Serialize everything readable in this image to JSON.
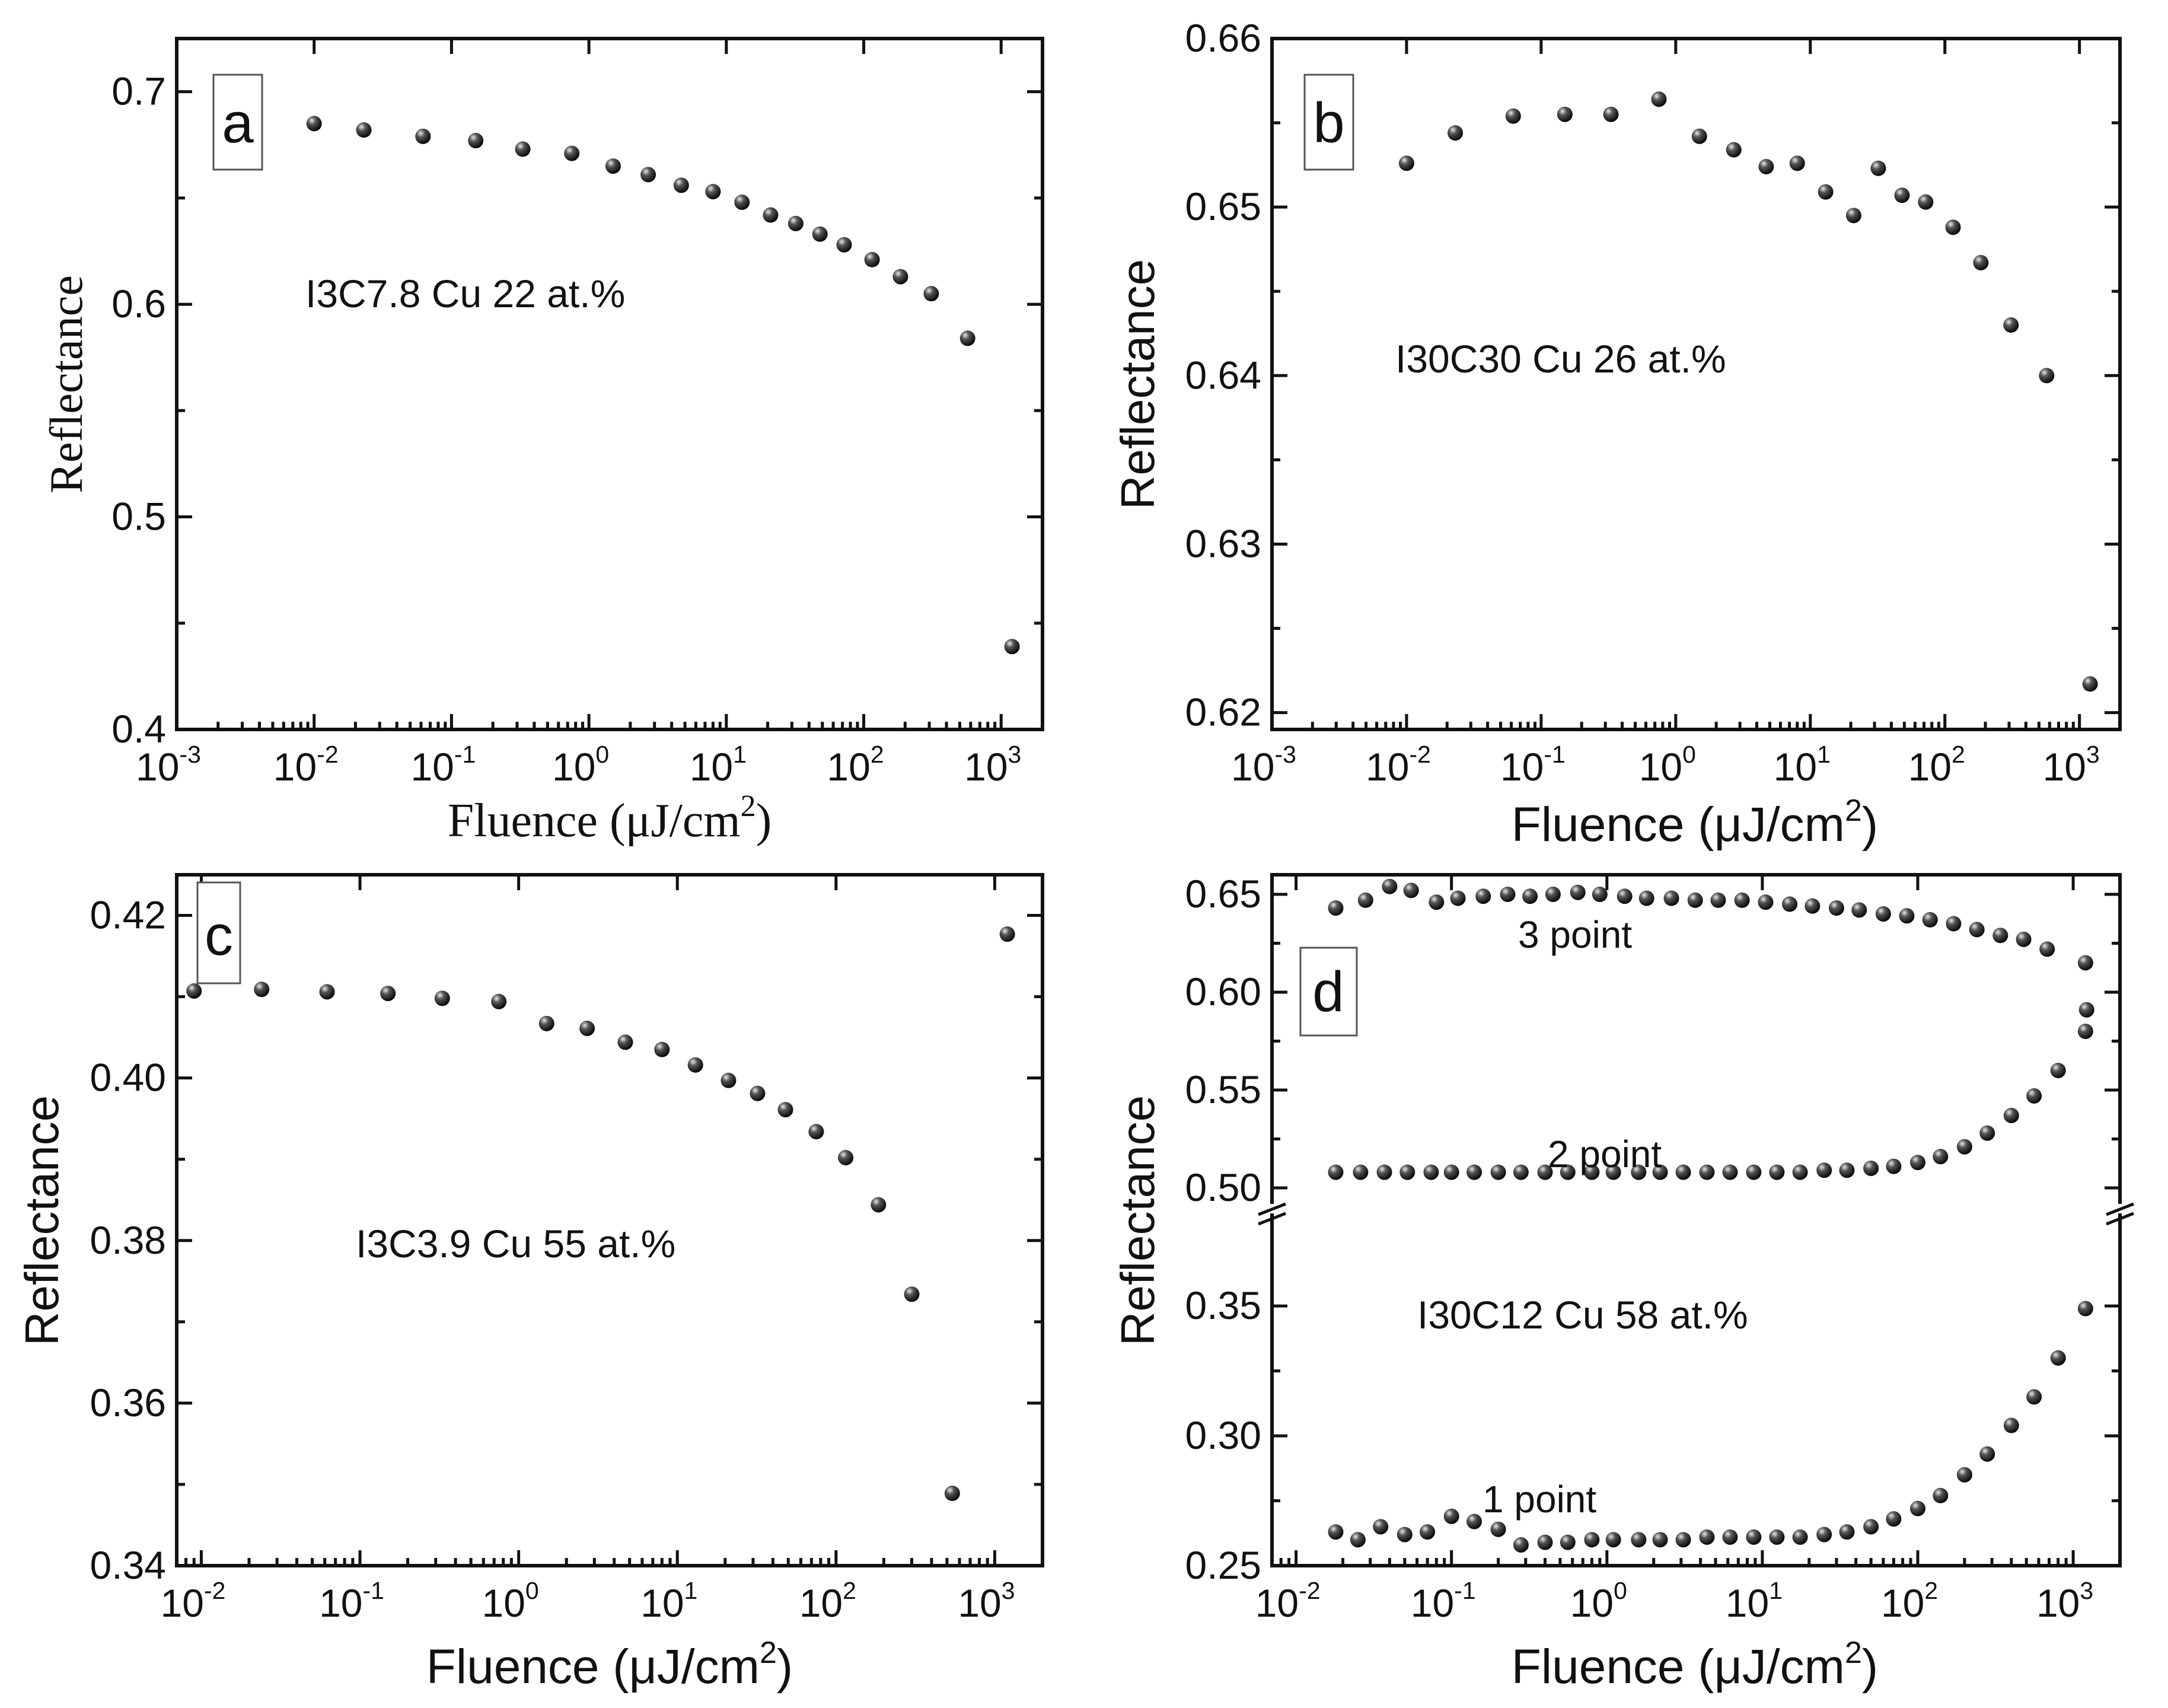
{
  "chart_data": [
    {
      "type": "scatter",
      "panel_label": "a",
      "annotation": "I3C7.8 Cu 22 at.%",
      "xlabel": "Fluence (μJ/cm²)",
      "ylabel": "Reflectance",
      "xscale": "log",
      "xlim": [
        0.001,
        2000
      ],
      "ylim": [
        0.4,
        0.725
      ],
      "x_tick_labels": [
        "10-3",
        "10-2",
        "10-1",
        "100",
        "101",
        "102",
        "103"
      ],
      "y_tick_labels": [
        "0.4",
        "0.5",
        "0.6",
        "0.7"
      ],
      "series": [
        {
          "name": "I3C7.8",
          "x": [
            0.01,
            0.023,
            0.062,
            0.15,
            0.33,
            0.75,
            1.5,
            2.7,
            4.7,
            8.0,
            13,
            21,
            32,
            48,
            72,
            115,
            185,
            310,
            570,
            1200
          ],
          "y": [
            0.685,
            0.682,
            0.679,
            0.677,
            0.673,
            0.671,
            0.665,
            0.661,
            0.656,
            0.653,
            0.648,
            0.642,
            0.638,
            0.633,
            0.628,
            0.621,
            0.613,
            0.605,
            0.584,
            0.439
          ]
        }
      ]
    },
    {
      "type": "scatter",
      "panel_label": "b",
      "annotation": "I30C30 Cu 26 at.%",
      "xlabel": "Fluence (μJ/cm²)",
      "ylabel": "Reflectance",
      "xscale": "log",
      "xlim": [
        0.001,
        2000
      ],
      "ylim": [
        0.619,
        0.66
      ],
      "x_tick_labels": [
        "10-3",
        "10-2",
        "10-1",
        "100",
        "101",
        "102",
        "103"
      ],
      "y_tick_labels": [
        "0.62",
        "0.63",
        "0.64",
        "0.65",
        "0.66"
      ],
      "series": [
        {
          "name": "I30C30",
          "x": [
            0.01,
            0.023,
            0.062,
            0.15,
            0.33,
            0.75,
            1.5,
            2.7,
            4.7,
            8.0,
            13,
            21,
            32,
            48,
            72,
            115,
            185,
            310,
            570,
            1200
          ],
          "y": [
            0.6526,
            0.6544,
            0.6554,
            0.6555,
            0.6555,
            0.6564,
            0.6542,
            0.6534,
            0.6524,
            0.6526,
            0.6509,
            0.6495,
            0.6523,
            0.6507,
            0.6503,
            0.6488,
            0.6467,
            0.643,
            0.64,
            0.6217
          ]
        }
      ]
    },
    {
      "type": "scatter",
      "panel_label": "c",
      "annotation": "I3C3.9 Cu 55 at.%",
      "xlabel": "Fluence (μJ/cm²)",
      "ylabel": "Reflectance",
      "xscale": "log",
      "xlim": [
        0.007,
        2000
      ],
      "ylim": [
        0.34,
        0.425
      ],
      "x_tick_labels": [
        "10-2",
        "10-1",
        "100",
        "101",
        "102",
        "103"
      ],
      "y_tick_labels": [
        "0.34",
        "0.36",
        "0.38",
        "0.40",
        "0.42"
      ],
      "series": [
        {
          "name": "I3C3.9",
          "x": [
            0.009,
            0.024,
            0.062,
            0.15,
            0.33,
            0.75,
            1.5,
            2.7,
            4.7,
            8.0,
            13,
            21,
            32,
            48,
            75,
            115,
            185,
            300,
            540,
            1200
          ],
          "y": [
            0.4107,
            0.4109,
            0.4106,
            0.4104,
            0.4098,
            0.4094,
            0.4067,
            0.4061,
            0.4044,
            0.4035,
            0.4016,
            0.3997,
            0.3981,
            0.3961,
            0.3934,
            0.3902,
            0.3844,
            0.3734,
            0.3489,
            0.4177
          ]
        }
      ]
    },
    {
      "type": "scatter",
      "panel_label": "d",
      "annotation": "I30C12 Cu 58 at.%",
      "xlabel": "Fluence (μJ/cm²)",
      "ylabel": "Reflectance",
      "xscale": "log",
      "xlim": [
        0.007,
        2000
      ],
      "broken_y_axis": {
        "upper_range": [
          0.5,
          0.66
        ],
        "lower_range": [
          0.25,
          0.39
        ],
        "break_between": [
          0.39,
          0.5
        ]
      },
      "x_tick_labels": [
        "10-2",
        "10-1",
        "100",
        "101",
        "102",
        "103"
      ],
      "y_tick_labels": [
        "0.25",
        "0.30",
        "0.35",
        "0.50",
        "0.55",
        "0.60",
        "0.65"
      ],
      "series": [
        {
          "name": "3 point",
          "x": [
            0.018,
            0.028,
            0.04,
            0.055,
            0.08,
            0.11,
            0.16,
            0.23,
            0.32,
            0.45,
            0.65,
            0.9,
            1.3,
            1.8,
            2.6,
            3.7,
            5.2,
            7.4,
            10.5,
            15,
            21,
            30,
            42,
            60,
            85,
            120,
            170,
            240,
            340,
            480,
            680,
            1200
          ],
          "y": [
            0.643,
            0.647,
            0.654,
            0.652,
            0.646,
            0.648,
            0.649,
            0.65,
            0.649,
            0.65,
            0.651,
            0.65,
            0.649,
            0.648,
            0.648,
            0.647,
            0.647,
            0.647,
            0.646,
            0.645,
            0.644,
            0.643,
            0.642,
            0.64,
            0.639,
            0.637,
            0.635,
            0.632,
            0.629,
            0.627,
            0.622,
            0.615
          ]
        },
        {
          "name": "2 point",
          "x": [
            0.018,
            0.026,
            0.037,
            0.052,
            0.074,
            0.1,
            0.14,
            0.2,
            0.28,
            0.4,
            0.56,
            0.8,
            1.1,
            1.6,
            2.2,
            3.1,
            4.4,
            6.2,
            8.8,
            12.4,
            17.5,
            25,
            35,
            50,
            70,
            100,
            140,
            200,
            280,
            400,
            560,
            800,
            1200,
            1220
          ],
          "y": [
            0.508,
            0.508,
            0.508,
            0.508,
            0.508,
            0.508,
            0.508,
            0.508,
            0.508,
            0.508,
            0.508,
            0.508,
            0.508,
            0.508,
            0.508,
            0.508,
            0.508,
            0.508,
            0.508,
            0.508,
            0.508,
            0.509,
            0.509,
            0.51,
            0.511,
            0.513,
            0.516,
            0.521,
            0.528,
            0.537,
            0.547,
            0.56,
            0.58,
            0.591
          ]
        },
        {
          "name": "1 point",
          "x": [
            0.018,
            0.025,
            0.035,
            0.05,
            0.07,
            0.1,
            0.14,
            0.2,
            0.28,
            0.4,
            0.56,
            0.8,
            1.1,
            1.6,
            2.2,
            3.1,
            4.4,
            6.2,
            8.8,
            12.4,
            17.5,
            25,
            35,
            50,
            70,
            100,
            140,
            200,
            280,
            400,
            560,
            800,
            1200
          ],
          "y": [
            0.263,
            0.26,
            0.265,
            0.262,
            0.263,
            0.269,
            0.267,
            0.264,
            0.258,
            0.259,
            0.259,
            0.26,
            0.26,
            0.26,
            0.26,
            0.26,
            0.261,
            0.261,
            0.261,
            0.261,
            0.261,
            0.262,
            0.263,
            0.265,
            0.268,
            0.272,
            0.277,
            0.285,
            0.293,
            0.304,
            0.315,
            0.33,
            0.349
          ]
        }
      ],
      "series_labels": [
        "3 point",
        "2 point",
        "1 point"
      ]
    }
  ]
}
